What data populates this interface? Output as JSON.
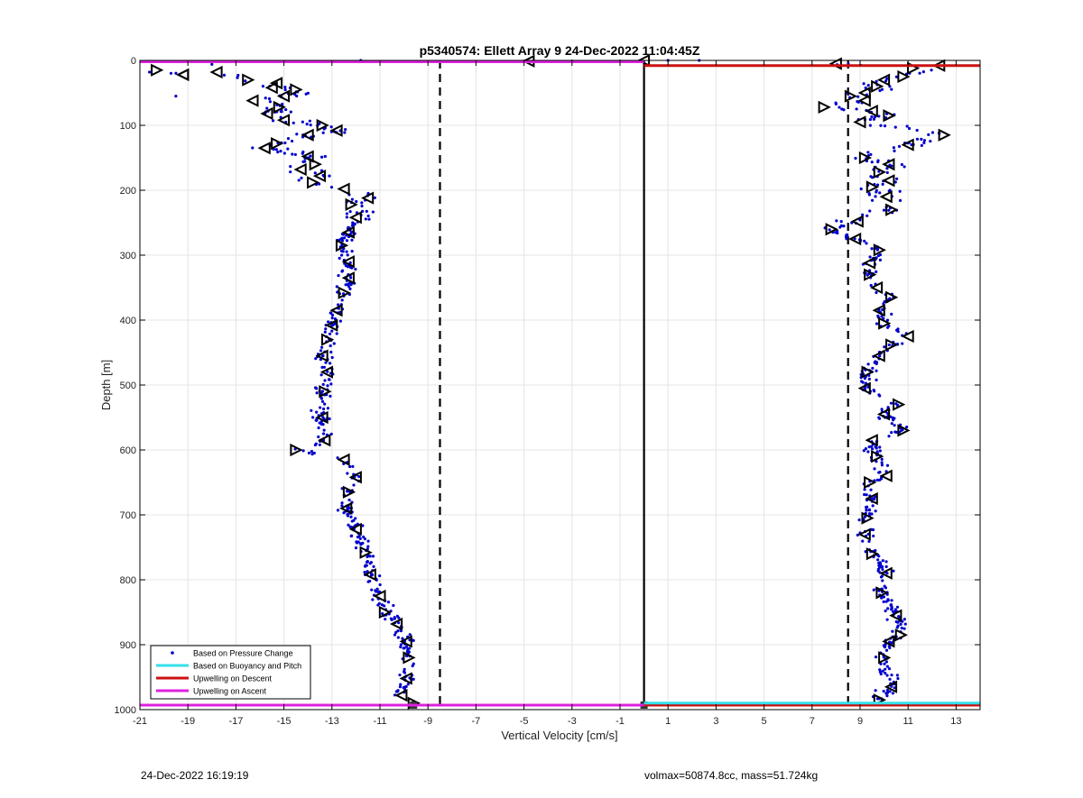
{
  "chart_data": {
    "type": "scatter",
    "title": "p5340574: Ellett Array 9 24-Dec-2022 11:04:45Z",
    "xlabel": "Vertical Velocity [cm/s]",
    "ylabel": "Depth [m]",
    "xlim": [
      -21,
      14
    ],
    "ylim": [
      1000,
      0
    ],
    "y_reversed": true,
    "grid": true,
    "x_ticks": [
      -21,
      -19,
      -17,
      -15,
      -13,
      -11,
      -9,
      -7,
      -5,
      -3,
      -1,
      1,
      3,
      5,
      7,
      9,
      11,
      13
    ],
    "y_ticks": [
      0,
      100,
      200,
      300,
      400,
      500,
      600,
      700,
      800,
      900,
      1000
    ],
    "legend_position": "bottom-left",
    "legend": [
      {
        "label": "Based on Pressure Change",
        "color": "#0000cc",
        "style": "dot"
      },
      {
        "label": "Based on Buoyancy and Pitch",
        "color": "#33e0e8",
        "style": "line"
      },
      {
        "label": "Upwelling on Descent",
        "color": "#cc1111",
        "style": "line"
      },
      {
        "label": "Upwelling on Ascent",
        "color": "#dd22dd",
        "style": "line"
      }
    ],
    "reference_lines": {
      "dashed_x": [
        -8.5,
        8.5
      ],
      "solid_x": [
        0
      ],
      "solid_x_range": [
        0,
        993
      ]
    },
    "upwelling_ascent": {
      "x_range": [
        -21,
        0
      ],
      "depth": 2
    },
    "upwelling_descent": {
      "x_range": [
        0,
        14
      ],
      "depth": 8
    },
    "bottom_lines": [
      {
        "series": "Upwelling on Ascent",
        "x_range": [
          -21,
          0
        ],
        "depth": 993
      },
      {
        "series": "Upwelling on Descent",
        "x_range": [
          0,
          14
        ],
        "depth": 993
      },
      {
        "series": "Based on Buoyancy and Pitch",
        "x_range": [
          0,
          14
        ],
        "depth": 990
      }
    ],
    "descent_profile": [
      [
        -20.3,
        15
      ],
      [
        -19.2,
        22
      ],
      [
        -17.8,
        18
      ],
      [
        -16.5,
        30
      ],
      [
        -15.3,
        35
      ],
      [
        -15.5,
        42
      ],
      [
        -14.5,
        45
      ],
      [
        -15.0,
        55
      ],
      [
        -16.3,
        62
      ],
      [
        -15.2,
        72
      ],
      [
        -15.7,
        82
      ],
      [
        -15.0,
        92
      ],
      [
        -13.4,
        100
      ],
      [
        -12.8,
        108
      ],
      [
        -14.0,
        115
      ],
      [
        -15.3,
        128
      ],
      [
        -15.8,
        135
      ],
      [
        -14.0,
        148
      ],
      [
        -13.7,
        160
      ],
      [
        -14.3,
        168
      ],
      [
        -13.5,
        178
      ],
      [
        -13.8,
        188
      ],
      [
        -12.5,
        198
      ],
      [
        -11.5,
        212
      ],
      [
        -12.2,
        222
      ],
      [
        -12.0,
        242
      ],
      [
        -12.3,
        265
      ],
      [
        -12.6,
        285
      ],
      [
        -12.3,
        310
      ],
      [
        -12.3,
        335
      ],
      [
        -12.5,
        358
      ],
      [
        -12.8,
        385
      ],
      [
        -13.0,
        408
      ],
      [
        -13.2,
        430
      ],
      [
        -13.4,
        455
      ],
      [
        -13.2,
        480
      ],
      [
        -13.3,
        510
      ],
      [
        -13.4,
        550
      ],
      [
        -13.3,
        585
      ],
      [
        -14.5,
        600
      ],
      [
        -12.5,
        615
      ],
      [
        -12.0,
        642
      ],
      [
        -12.3,
        665
      ],
      [
        -12.4,
        690
      ],
      [
        -12.0,
        722
      ],
      [
        -11.6,
        758
      ],
      [
        -11.4,
        792
      ],
      [
        -11.0,
        825
      ],
      [
        -10.8,
        850
      ],
      [
        -10.3,
        868
      ],
      [
        -9.9,
        895
      ],
      [
        -9.8,
        920
      ],
      [
        -9.9,
        952
      ],
      [
        -10.1,
        978
      ],
      [
        -9.6,
        990
      ]
    ],
    "ascent_profile": [
      [
        8.0,
        5
      ],
      [
        11.2,
        12
      ],
      [
        12.3,
        8
      ],
      [
        10.8,
        25
      ],
      [
        10.0,
        30
      ],
      [
        9.7,
        40
      ],
      [
        9.2,
        50
      ],
      [
        8.6,
        55
      ],
      [
        9.2,
        62
      ],
      [
        7.5,
        72
      ],
      [
        9.5,
        78
      ],
      [
        10.2,
        85
      ],
      [
        9.0,
        95
      ],
      [
        12.5,
        115
      ],
      [
        11.0,
        130
      ],
      [
        9.2,
        150
      ],
      [
        10.2,
        160
      ],
      [
        9.8,
        172
      ],
      [
        10.2,
        185
      ],
      [
        9.5,
        195
      ],
      [
        10.1,
        210
      ],
      [
        10.3,
        230
      ],
      [
        8.9,
        248
      ],
      [
        7.8,
        260
      ],
      [
        8.8,
        275
      ],
      [
        9.8,
        292
      ],
      [
        9.4,
        312
      ],
      [
        9.4,
        330
      ],
      [
        9.7,
        350
      ],
      [
        10.3,
        365
      ],
      [
        9.8,
        385
      ],
      [
        10.0,
        405
      ],
      [
        11.0,
        425
      ],
      [
        10.3,
        438
      ],
      [
        9.8,
        455
      ],
      [
        9.3,
        480
      ],
      [
        9.2,
        505
      ],
      [
        10.6,
        530
      ],
      [
        10.0,
        545
      ],
      [
        10.8,
        570
      ],
      [
        9.5,
        585
      ],
      [
        9.7,
        610
      ],
      [
        10.1,
        640
      ],
      [
        9.4,
        650
      ],
      [
        9.5,
        675
      ],
      [
        9.3,
        705
      ],
      [
        9.2,
        730
      ],
      [
        9.5,
        760
      ],
      [
        10.1,
        790
      ],
      [
        9.9,
        820
      ],
      [
        10.5,
        855
      ],
      [
        10.7,
        885
      ],
      [
        10.2,
        895
      ],
      [
        10.0,
        920
      ],
      [
        10.3,
        965
      ],
      [
        9.8,
        985
      ]
    ],
    "scatter_seed": 5340574
  },
  "footer": {
    "left": "24-Dec-2022 16:19:19",
    "right": "volmax=50874.8cc, mass=51.724kg"
  }
}
